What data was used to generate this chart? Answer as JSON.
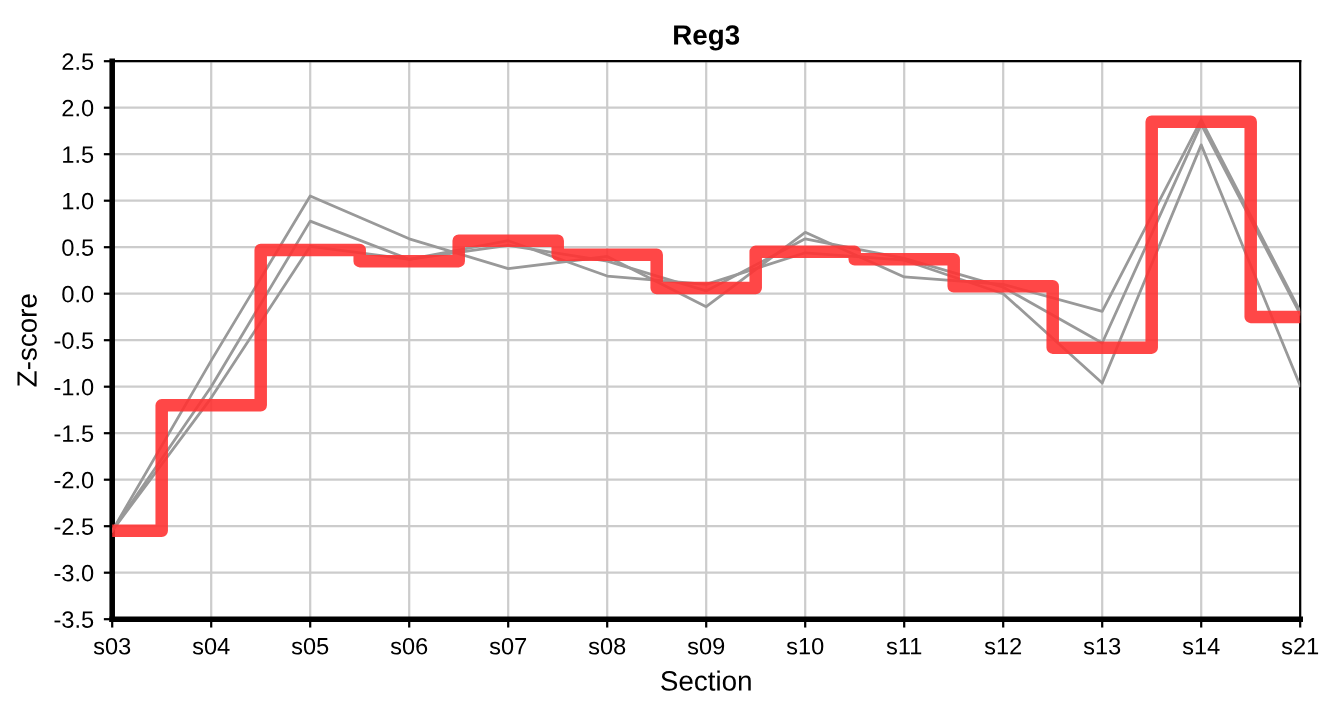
{
  "chart_data": {
    "type": "line",
    "title": "Reg3",
    "xlabel": "Section",
    "ylabel": "Z-score",
    "categories": [
      "s03",
      "s04",
      "s05",
      "s06",
      "s07",
      "s08",
      "s09",
      "s10",
      "s11",
      "s12",
      "s13",
      "s14",
      "s21"
    ],
    "series": [
      {
        "color": "#999999",
        "values": [
          -2.55,
          -0.72,
          1.05,
          0.59,
          0.27,
          0.4,
          -0.14,
          0.66,
          0.18,
          0.1,
          -0.19,
          1.87,
          -0.19
        ]
      },
      {
        "color": "#999999",
        "values": [
          -2.55,
          -1.0,
          0.78,
          0.37,
          0.52,
          0.35,
          0.03,
          0.59,
          0.38,
          0.07,
          -0.53,
          1.82,
          -0.22
        ]
      },
      {
        "color": "#999999",
        "values": [
          -2.55,
          -1.12,
          0.51,
          0.37,
          0.57,
          0.19,
          0.1,
          0.44,
          0.36,
          0.0,
          -0.96,
          1.6,
          -0.99
        ]
      },
      {
        "type": "step",
        "color": "#ff3333",
        "values": [
          -2.55,
          -1.2,
          0.47,
          0.35,
          0.57,
          0.42,
          0.06,
          0.45,
          0.37,
          0.08,
          -0.58,
          1.85,
          -0.25
        ]
      }
    ],
    "ylim": [
      -3.5,
      2.5
    ],
    "yticks": [
      {
        "value": -3.5,
        "label": "-3.5"
      },
      {
        "value": -3,
        "label": "-3.0"
      },
      {
        "value": -2.5,
        "label": "-2.5"
      },
      {
        "value": -2,
        "label": "-2.0"
      },
      {
        "value": -1.5,
        "label": "-1.5"
      },
      {
        "value": -1,
        "label": "-1.0"
      },
      {
        "value": -0.5,
        "label": "-0.5"
      },
      {
        "value": 0,
        "label": "0.0"
      },
      {
        "value": 0.5,
        "label": "0.5"
      },
      {
        "value": 1,
        "label": "1.0"
      },
      {
        "value": 1.5,
        "label": "1.5"
      },
      {
        "value": 2,
        "label": "2.0"
      },
      {
        "value": 2.5,
        "label": "2.5"
      }
    ],
    "grid": true
  }
}
